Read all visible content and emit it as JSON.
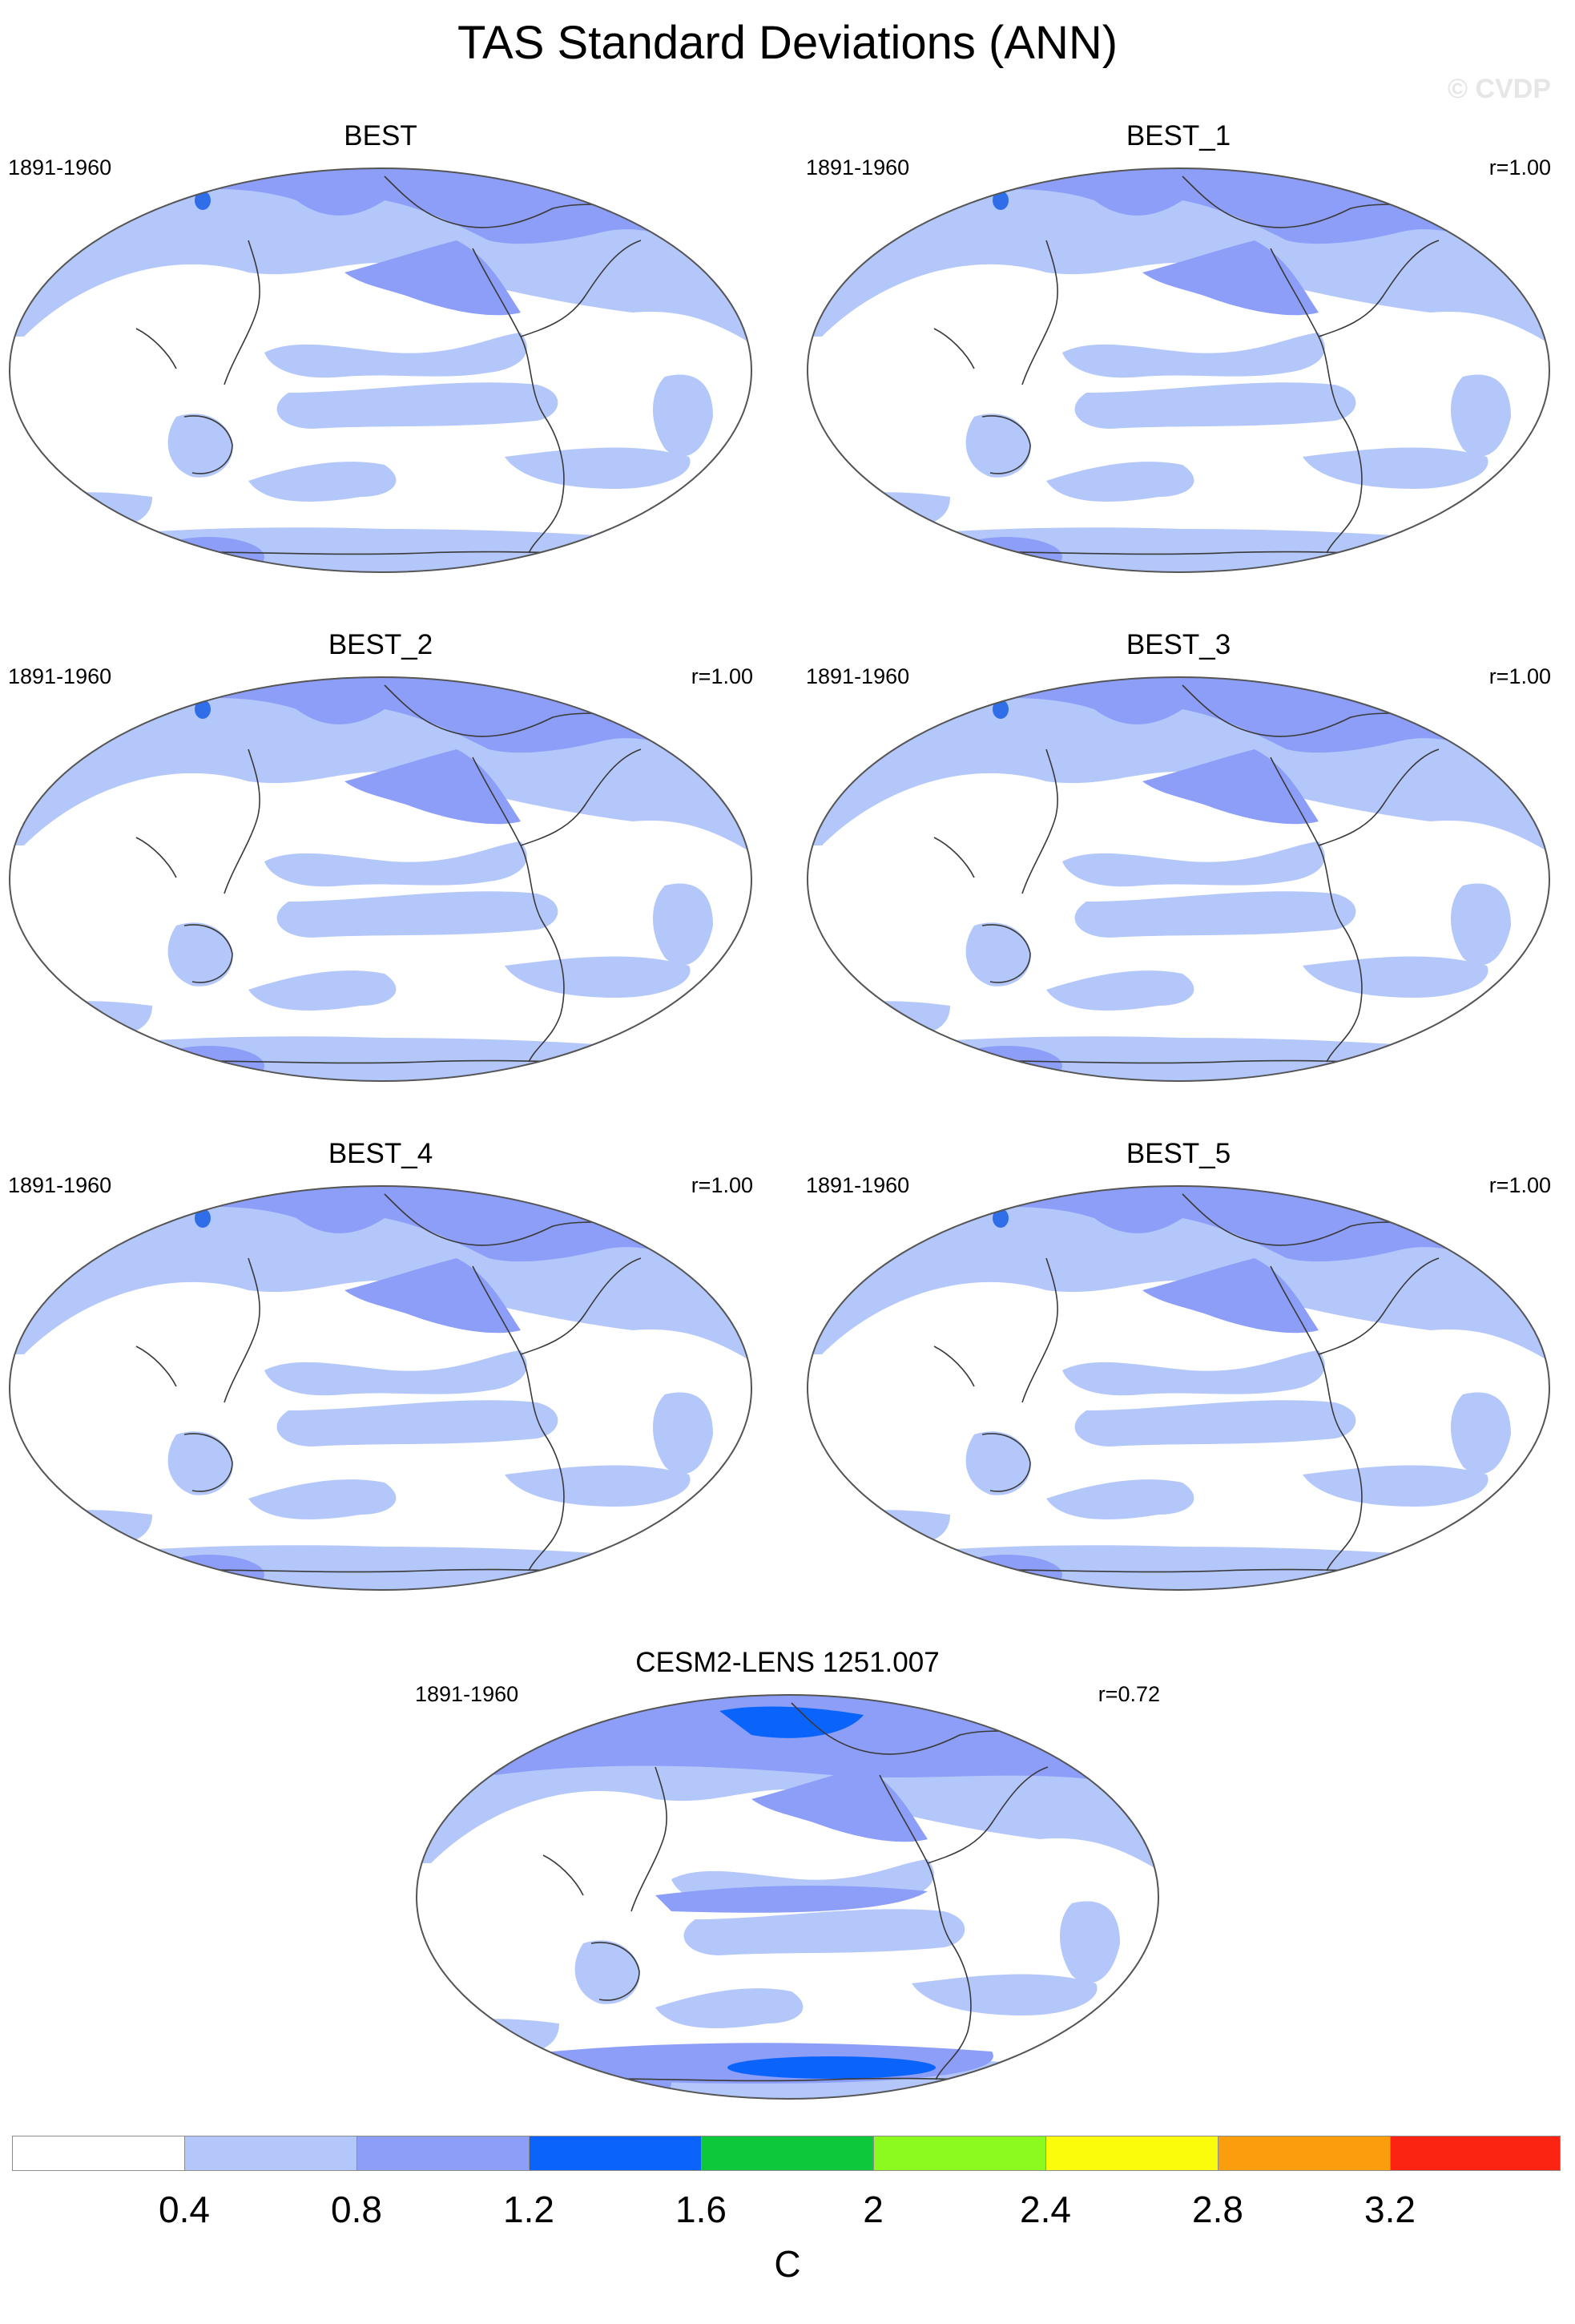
{
  "title": "TAS Standard Deviations (ANN)",
  "watermark": "© CVDP",
  "panels": [
    {
      "title": "BEST",
      "period": "1891-1960",
      "r": ""
    },
    {
      "title": "BEST_1",
      "period": "1891-1960",
      "r": "r=1.00"
    },
    {
      "title": "BEST_2",
      "period": "1891-1960",
      "r": "r=1.00"
    },
    {
      "title": "BEST_3",
      "period": "1891-1960",
      "r": "r=1.00"
    },
    {
      "title": "BEST_4",
      "period": "1891-1960",
      "r": "r=1.00"
    },
    {
      "title": "BEST_5",
      "period": "1891-1960",
      "r": "r=1.00"
    },
    {
      "title": "CESM2-LENS 1251.007",
      "period": "1891-1960",
      "r": "r=0.72"
    }
  ],
  "colorbar": {
    "units": "C",
    "labels": [
      "0.4",
      "0.8",
      "1.2",
      "1.6",
      "2",
      "2.4",
      "2.8",
      "3.2"
    ],
    "colors": [
      "#ffffff",
      "#b4c7fb",
      "#8c9ef7",
      "#0a64fc",
      "#0dc83a",
      "#8cfa1e",
      "#fbfb0c",
      "#fb9e0d",
      "#fb2412"
    ]
  }
}
